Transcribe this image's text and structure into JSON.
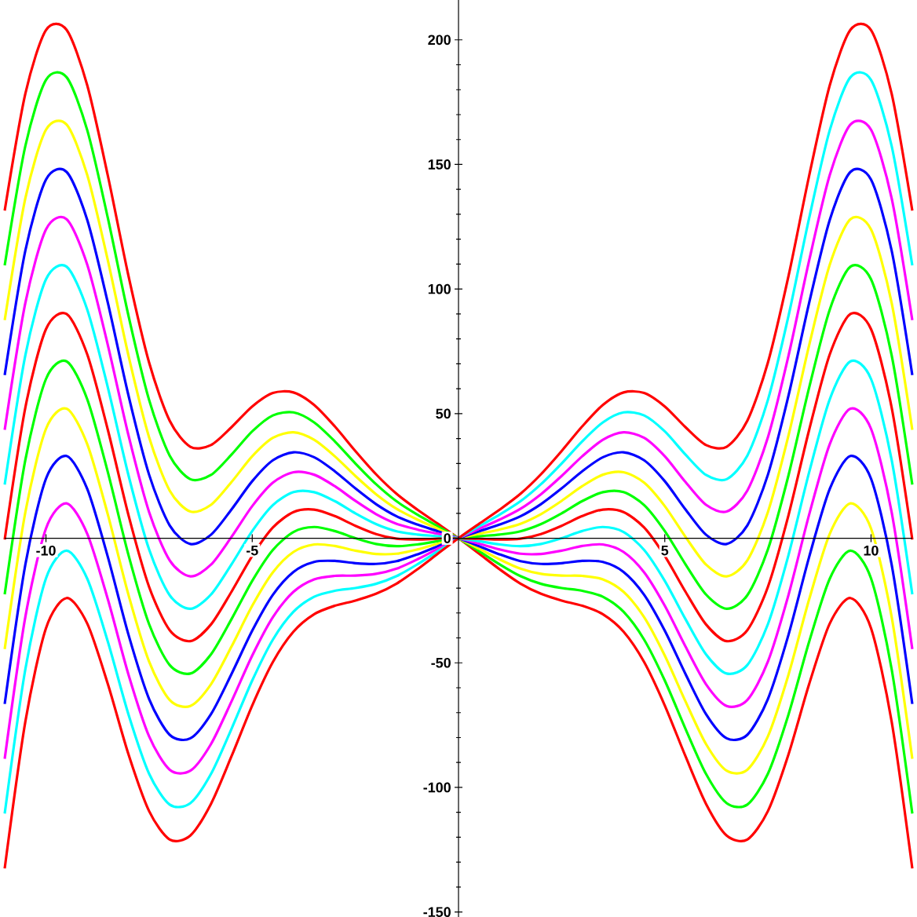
{
  "chart_data": {
    "type": "line",
    "x": [
      -11,
      -10.5,
      -10,
      -9.5,
      -9,
      -8.5,
      -8,
      -7.5,
      -7,
      -6.5,
      -6,
      -5.5,
      -5,
      -4.5,
      -4,
      -3.5,
      -3,
      -2.5,
      -2,
      -1.5,
      -1,
      -0.5,
      0,
      0.5,
      1,
      1.5,
      2,
      2.5,
      3,
      3.5,
      4,
      4.5,
      5,
      5.5,
      6,
      6.5,
      7,
      7.5,
      8,
      8.5,
      9,
      9.5,
      10,
      10.5,
      11
    ],
    "series": [
      {
        "color": "#ff0000",
        "values": [
          131.5,
          178.4,
          203.9,
          204,
          181.8,
          145.5,
          105.3,
          70.5,
          47.1,
          36.7,
          37.4,
          44.6,
          52.9,
          58.3,
          58.5,
          53.5,
          44.9,
          35,
          25.7,
          17.8,
          11.5,
          5.8,
          0,
          -6.2,
          -12.5,
          -18.2,
          -22.3,
          -25,
          -27.1,
          -30.5,
          -37.5,
          -49.7,
          -67.1,
          -87.4,
          -106.6,
          -119.3,
          -120.9,
          -109.5,
          -86.7,
          -58.5,
          -34.2,
          -24.0,
          -36.1,
          -73.6,
          -132.5
        ]
      },
      {
        "color": "#00ff00",
        "values": [
          109.5,
          157.4,
          183.9,
          185,
          163.8,
          128.5,
          89.3,
          55.5,
          33.1,
          23.7,
          25.4,
          33.6,
          42.9,
          49.3,
          50.5,
          46.5,
          38.9,
          30,
          21.7,
          14.8,
          9.5,
          4.8,
          0,
          -5.2,
          -10.5,
          -15.2,
          -18.3,
          -20,
          -21.1,
          -23.5,
          -29.5,
          -40.7,
          -57.1,
          -76.4,
          -94.6,
          -106.3,
          -106.9,
          -94.5,
          -70.7,
          -41.5,
          -16.2,
          -5.0,
          -16.1,
          -52.6,
          -110.5
        ]
      },
      {
        "color": "#ffff00",
        "values": [
          87.5,
          136.4,
          163.9,
          166,
          145.8,
          111.5,
          73.3,
          40.5,
          19.1,
          10.7,
          13.4,
          22.6,
          32.9,
          40.3,
          42.5,
          39.5,
          32.9,
          25,
          17.7,
          11.8,
          7.5,
          3.8,
          0,
          -4.2,
          -8.5,
          -12.2,
          -14.3,
          -15,
          -15.1,
          -16.5,
          -21.5,
          -31.7,
          -47.1,
          -65.4,
          -82.6,
          -93.3,
          -92.9,
          -79.5,
          -54.7,
          -24.5,
          1.8,
          14.0,
          3.9,
          -31.6,
          -88.5
        ]
      },
      {
        "color": "#0000ff",
        "values": [
          65.5,
          115.4,
          143.9,
          147,
          127.8,
          94.5,
          57.3,
          25.5,
          5.1,
          -2.3,
          1.4,
          11.6,
          22.9,
          31.3,
          34.5,
          32.5,
          26.9,
          20,
          13.7,
          8.8,
          5.5,
          2.8,
          0,
          -3.2,
          -6.5,
          -9.2,
          -10.3,
          -10,
          -9.1,
          -9.5,
          -13.5,
          -22.7,
          -37.1,
          -54.4,
          -70.6,
          -80.3,
          -78.9,
          -64.5,
          -38.7,
          -7.5,
          19.8,
          33.0,
          23.9,
          -10.6,
          -66.5
        ]
      },
      {
        "color": "#ff00ff",
        "values": [
          43.5,
          94.4,
          123.9,
          128,
          109.8,
          77.5,
          41.3,
          10.5,
          -8.9,
          -15.3,
          -10.6,
          0.6,
          12.9,
          22.3,
          26.5,
          25.5,
          20.9,
          15,
          9.7,
          5.8,
          3.5,
          1.8,
          0,
          -2.2,
          -4.5,
          -6.2,
          -6.3,
          -5,
          -3.1,
          -2.5,
          -5.5,
          -13.7,
          -27.1,
          -43.4,
          -58.6,
          -67.3,
          -64.9,
          -49.5,
          -22.7,
          9.5,
          37.8,
          52.0,
          43.9,
          10.4,
          -44.5
        ]
      },
      {
        "color": "#00ffff",
        "values": [
          21.5,
          73.4,
          103.9,
          109,
          91.8,
          60.5,
          25.3,
          -4.5,
          -22.9,
          -28.3,
          -22.6,
          -10.4,
          2.9,
          13.3,
          18.5,
          18.5,
          14.9,
          10,
          5.7,
          2.8,
          1.5,
          0.8,
          0,
          -1.2,
          -2.5,
          -3.2,
          -2.3,
          0,
          2.9,
          4.5,
          2.5,
          -4.7,
          -17.1,
          -32.4,
          -46.6,
          -54.3,
          -50.9,
          -34.5,
          -6.7,
          26.5,
          55.8,
          71.0,
          63.9,
          31.4,
          -22.5
        ]
      },
      {
        "color": "#ff0000",
        "values": [
          -0.5,
          52.4,
          83.9,
          90.0,
          73.8,
          43.5,
          9.3,
          -19.5,
          -36.9,
          -41.3,
          -34.6,
          -21.4,
          -7.1,
          4.3,
          10.5,
          11.5,
          8.9,
          5.0,
          1.7,
          -0.2,
          -0.5,
          -0.2,
          0,
          -0.2,
          -0.5,
          -0.2,
          1.7,
          5.0,
          8.9,
          11.5,
          10.5,
          4.3,
          -7.1,
          -21.4,
          -34.6,
          -41.3,
          -36.9,
          -19.5,
          9.3,
          43.5,
          73.8,
          90.0,
          83.9,
          52.4,
          -0.5
        ]
      },
      {
        "color": "#00ff00",
        "values": [
          -22.5,
          31.4,
          63.9,
          71.0,
          55.8,
          26.5,
          -6.7,
          -34.5,
          -50.9,
          -54.3,
          -46.6,
          -32.4,
          -17.1,
          -4.7,
          2.5,
          4.5,
          2.9,
          0,
          -2.3,
          -3.2,
          -2.5,
          -1.2,
          0,
          0.8,
          1.5,
          2.8,
          5.7,
          10,
          14.9,
          18.5,
          18.5,
          13.3,
          2.9,
          -10.4,
          -22.6,
          -28.3,
          -22.9,
          -4.5,
          25.3,
          60.5,
          91.8,
          109,
          103.9,
          73.4,
          21.5
        ]
      },
      {
        "color": "#ffff00",
        "values": [
          -44.5,
          10.4,
          43.9,
          52.0,
          37.8,
          9.5,
          -22.7,
          -49.5,
          -64.9,
          -67.3,
          -58.6,
          -43.4,
          -27.1,
          -13.7,
          -5.5,
          -2.5,
          -3.1,
          -5,
          -6.3,
          -6.2,
          -4.5,
          -2.2,
          0,
          1.8,
          3.5,
          5.8,
          9.7,
          15,
          20.9,
          25.5,
          26.5,
          22.3,
          12.9,
          0.6,
          -10.6,
          -15.3,
          -8.9,
          10.5,
          41.3,
          77.5,
          109.8,
          128,
          123.9,
          94.4,
          43.5
        ]
      },
      {
        "color": "#0000ff",
        "values": [
          -66.5,
          -10.6,
          23.9,
          33.0,
          19.8,
          -7.5,
          -38.7,
          -64.5,
          -78.9,
          -80.3,
          -70.6,
          -54.4,
          -37.1,
          -22.7,
          -13.5,
          -9.5,
          -9.1,
          -10,
          -10.3,
          -9.2,
          -6.5,
          -3.2,
          0,
          2.8,
          5.5,
          8.8,
          13.7,
          20,
          26.9,
          32.5,
          34.5,
          31.3,
          22.9,
          11.6,
          1.4,
          -2.3,
          5.1,
          25.5,
          57.3,
          94.5,
          127.8,
          147,
          143.9,
          115.4,
          65.5
        ]
      },
      {
        "color": "#ff00ff",
        "values": [
          -88.5,
          -31.6,
          3.9,
          14.0,
          1.8,
          -24.5,
          -54.7,
          -79.5,
          -92.9,
          -93.3,
          -82.6,
          -65.4,
          -47.1,
          -31.7,
          -21.5,
          -16.5,
          -15.1,
          -15,
          -14.3,
          -12.2,
          -8.5,
          -4.2,
          0,
          3.8,
          7.5,
          11.8,
          17.7,
          25,
          32.9,
          39.5,
          42.5,
          40.3,
          32.9,
          22.6,
          13.4,
          10.7,
          19.1,
          40.5,
          73.3,
          111.5,
          145.8,
          166,
          163.9,
          136.4,
          87.5
        ]
      },
      {
        "color": "#00ffff",
        "values": [
          -110.5,
          -52.6,
          -16.1,
          -5.0,
          -16.2,
          -41.5,
          -70.7,
          -94.5,
          -106.9,
          -106.3,
          -94.6,
          -76.4,
          -57.1,
          -40.7,
          -29.5,
          -23.5,
          -21.1,
          -20,
          -18.3,
          -15.2,
          -10.5,
          -5.2,
          0,
          4.8,
          9.5,
          14.8,
          21.7,
          30,
          38.9,
          46.5,
          50.5,
          49.3,
          42.9,
          33.6,
          25.4,
          23.7,
          33.1,
          55.5,
          89.3,
          128.5,
          163.8,
          185,
          183.9,
          157.4,
          109.5
        ]
      },
      {
        "color": "#ff0000",
        "values": [
          -132.5,
          -73.6,
          -36.1,
          -24.0,
          -34.2,
          -58.5,
          -86.7,
          -109.5,
          -120.9,
          -119.3,
          -106.6,
          -87.4,
          -67.1,
          -49.7,
          -37.5,
          -30.5,
          -27.1,
          -25,
          -22.3,
          -18.2,
          -12.5,
          -6.2,
          0,
          5.8,
          11.5,
          17.8,
          25.7,
          35,
          44.9,
          53.5,
          58.5,
          58.3,
          52.9,
          44.6,
          37.4,
          36.7,
          47.1,
          70.5,
          105.3,
          145.5,
          181.8,
          204,
          203.9,
          178.4,
          131.5
        ]
      }
    ],
    "xlim": [
      -11,
      11
    ],
    "ylim": [
      -152,
      216
    ],
    "xticks": [
      -10,
      -5,
      5,
      10
    ],
    "yticks": [
      -150,
      -100,
      -50,
      0,
      50,
      100,
      150,
      200
    ]
  }
}
